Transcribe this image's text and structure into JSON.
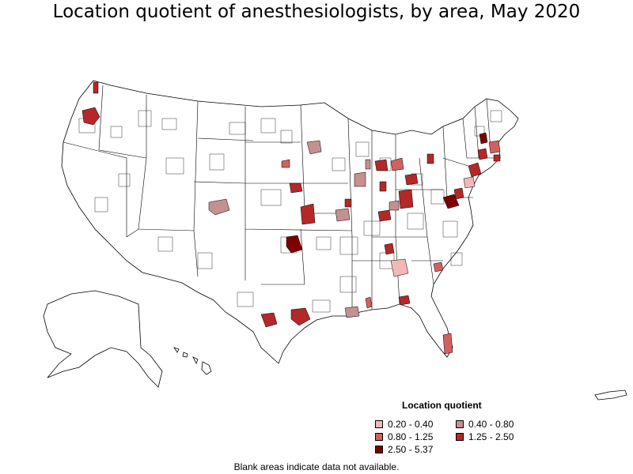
{
  "title": "Location quotient of anesthesiologists, by area, May 2020",
  "legend": {
    "title": "Location quotient",
    "items": [
      {
        "label": "0.20 - 0.40",
        "color": "#f2b8b8"
      },
      {
        "label": "0.40 - 0.80",
        "color": "#c49090"
      },
      {
        "label": "0.80 - 1.25",
        "color": "#d26060"
      },
      {
        "label": "1.25 - 2.50",
        "color": "#b42828"
      },
      {
        "label": "2.50 - 5.37",
        "color": "#7d0000"
      }
    ]
  },
  "footnote": "Blank areas indicate data not available.",
  "colors": {
    "land": "#ffffff",
    "border": "#000000"
  }
}
